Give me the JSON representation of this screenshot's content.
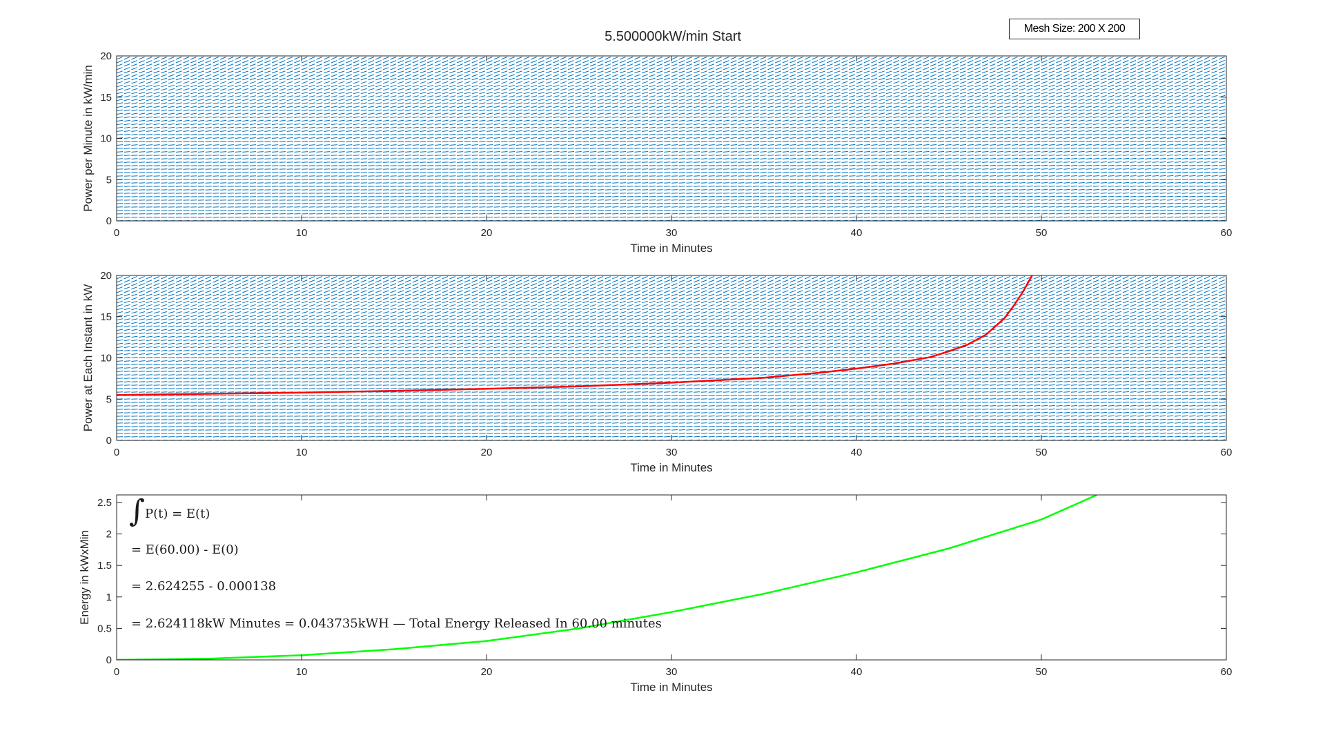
{
  "figure": {
    "title": "5.500000kW/min Start",
    "mesh_label": "Mesh Size: 200 X 200"
  },
  "chart_data": [
    {
      "type": "quiver",
      "title": "5.500000kW/min Start",
      "xlabel": "Time in Minutes",
      "ylabel": "Power per Minute in kW/min",
      "xlim": [
        0,
        60
      ],
      "ylim": [
        0,
        20
      ],
      "xticks": [
        0,
        10,
        20,
        30,
        40,
        50,
        60
      ],
      "yticks": [
        0,
        5,
        10,
        15,
        20
      ],
      "grid": false,
      "series": [
        {
          "kind": "direction-field",
          "color": "#0072BD",
          "mesh": [
            200,
            200
          ]
        }
      ]
    },
    {
      "type": "quiver",
      "xlabel": "Time in Minutes",
      "ylabel": "Power at Each Instant in kW",
      "xlim": [
        0,
        60
      ],
      "ylim": [
        0,
        20
      ],
      "xticks": [
        0,
        10,
        20,
        30,
        40,
        50,
        60
      ],
      "yticks": [
        0,
        5,
        10,
        15,
        20
      ],
      "grid": false,
      "series": [
        {
          "kind": "direction-field",
          "color": "#0072BD",
          "mesh": [
            200,
            200
          ]
        },
        {
          "kind": "line",
          "color": "#FF0000",
          "x": [
            0,
            5,
            10,
            15,
            20,
            25,
            30,
            35,
            38,
            40,
            42,
            44,
            45,
            46,
            47,
            48,
            48.5,
            49,
            49.5
          ],
          "y": [
            5.5,
            5.65,
            5.8,
            6.0,
            6.25,
            6.55,
            7.0,
            7.6,
            8.2,
            8.7,
            9.3,
            10.1,
            10.8,
            11.6,
            12.8,
            14.8,
            16.3,
            18.0,
            20.0
          ]
        }
      ]
    },
    {
      "type": "line",
      "xlabel": "Time in Minutes",
      "ylabel": "Energy in kWxMin",
      "xlim": [
        0,
        60
      ],
      "ylim": [
        0,
        2.62
      ],
      "xticks": [
        0,
        10,
        20,
        30,
        40,
        50,
        60
      ],
      "yticks": [
        0,
        0.5,
        1,
        1.5,
        2,
        2.5
      ],
      "ytick_labels": [
        "0",
        "0.5",
        "1",
        "1.5",
        "2",
        "2.5"
      ],
      "grid": false,
      "series": [
        {
          "kind": "line",
          "color": "#00FF00",
          "x": [
            0,
            5,
            10,
            15,
            20,
            25,
            30,
            35,
            40,
            45,
            50,
            53
          ],
          "y": [
            0,
            0.02,
            0.075,
            0.17,
            0.3,
            0.5,
            0.76,
            1.05,
            1.39,
            1.77,
            2.23,
            2.62
          ]
        }
      ],
      "annotations": [
        "P(t) = E(t)",
        "= E(60.00) - E(0)",
        "= 2.624255 - 0.000138",
        "= 2.624118kW Minutes = 0.043735kWH — Total Energy Released In 60.00 minutes"
      ],
      "integral_symbol": "∫"
    }
  ]
}
